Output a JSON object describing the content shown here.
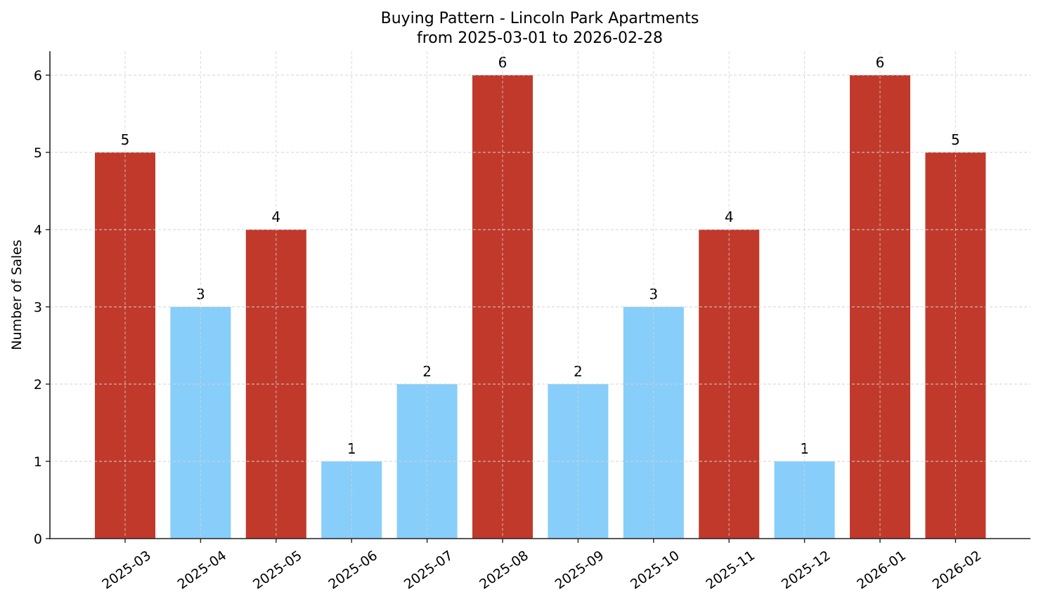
{
  "chart_data": {
    "type": "bar",
    "title": "Buying Pattern - Lincoln Park Apartments",
    "subtitle": "from 2025-03-01 to 2026-02-28",
    "xlabel": "",
    "ylabel": "Number of Sales",
    "categories": [
      "2025-03",
      "2025-04",
      "2025-05",
      "2025-06",
      "2025-07",
      "2025-08",
      "2025-09",
      "2025-10",
      "2025-11",
      "2025-12",
      "2026-01",
      "2026-02"
    ],
    "values": [
      5,
      3,
      4,
      1,
      2,
      6,
      2,
      3,
      4,
      1,
      6,
      5
    ],
    "bar_colors": [
      "#C0392B",
      "#87CEFA",
      "#C0392B",
      "#87CEFA",
      "#87CEFA",
      "#C0392B",
      "#87CEFA",
      "#87CEFA",
      "#C0392B",
      "#87CEFA",
      "#C0392B",
      "#C0392B"
    ],
    "yticks": [
      0,
      1,
      2,
      3,
      4,
      5,
      6
    ],
    "ylim": [
      0,
      6.3
    ],
    "grid": true,
    "data_labels": true,
    "legend": null
  },
  "colors": {
    "high": "#C0392B",
    "low": "#87CEFA",
    "grid": "#d3d3d3",
    "axis": "#222222"
  }
}
